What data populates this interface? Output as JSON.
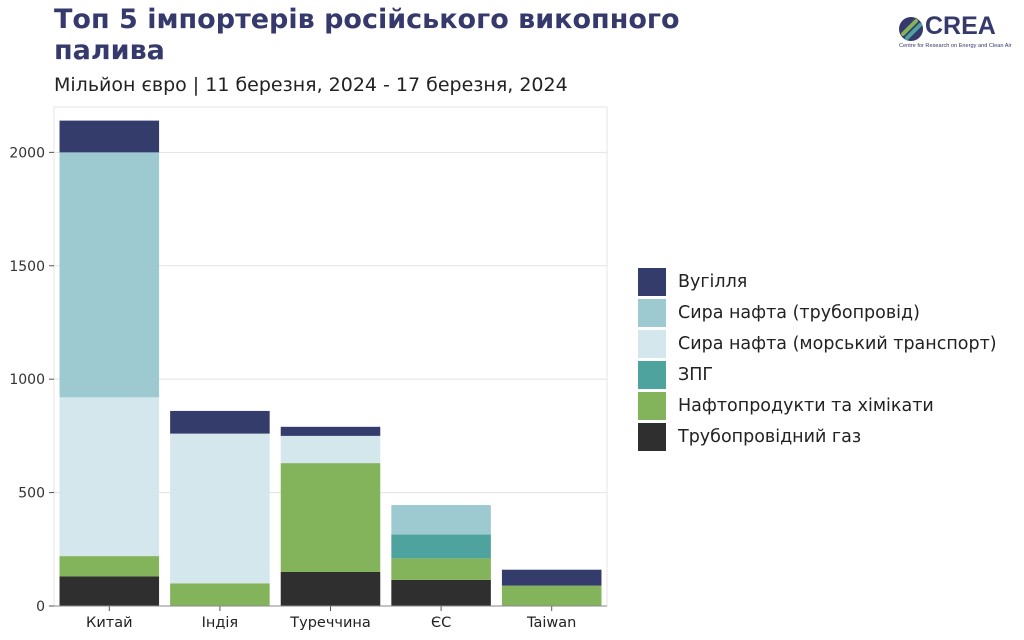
{
  "title": "Топ 5 імпортерів російського викопного\n палива",
  "subtitle": "Мільйон євро | 11 березня, 2024 - 17 березня, 2024",
  "logo": {
    "name": "CREA",
    "tagline": "Centre for Research on Energy and Clean Air"
  },
  "colors": {
    "coal": "#333c6b",
    "crude_pipeline": "#9dcad0",
    "crude_seaborne": "#d3e7ec",
    "lng": "#4fa39e",
    "oil_products": "#83b35b",
    "pipeline_gas": "#2f2f2f"
  },
  "chart_data": {
    "type": "bar",
    "stacked": true,
    "title": "Топ 5 імпортерів російського викопного палива",
    "xlabel": "",
    "ylabel": "",
    "ylim": [
      0,
      2200
    ],
    "yticks": [
      0,
      500,
      1000,
      1500,
      2000
    ],
    "grid": true,
    "legend_position": "right",
    "categories": [
      "Китай",
      "Індія",
      "Туреччина",
      "ЄС",
      "Taiwan"
    ],
    "series": [
      {
        "name": "Трубопровідний газ",
        "key": "pipeline_gas",
        "values": [
          130,
          0,
          150,
          115,
          0
        ]
      },
      {
        "name": "Нафтопродукти та хімікати",
        "key": "oil_products",
        "values": [
          90,
          100,
          480,
          95,
          90
        ]
      },
      {
        "name": "ЗПГ",
        "key": "lng",
        "values": [
          0,
          0,
          0,
          105,
          0
        ]
      },
      {
        "name": "Сира нафта (морський транспорт)",
        "key": "crude_seaborne",
        "values": [
          700,
          660,
          120,
          0,
          0
        ]
      },
      {
        "name": "Сира нафта (трубопровід)",
        "key": "crude_pipeline",
        "values": [
          1080,
          0,
          0,
          130,
          0
        ]
      },
      {
        "name": "Вугілля",
        "key": "coal",
        "values": [
          140,
          100,
          40,
          0,
          70
        ]
      }
    ],
    "legend_order": [
      "Вугілля",
      "Сира нафта (трубопровід)",
      "Сира нафта (морський транспорт)",
      "ЗПГ",
      "Нафтопродукти та хімікати",
      "Трубопровідний газ"
    ]
  }
}
